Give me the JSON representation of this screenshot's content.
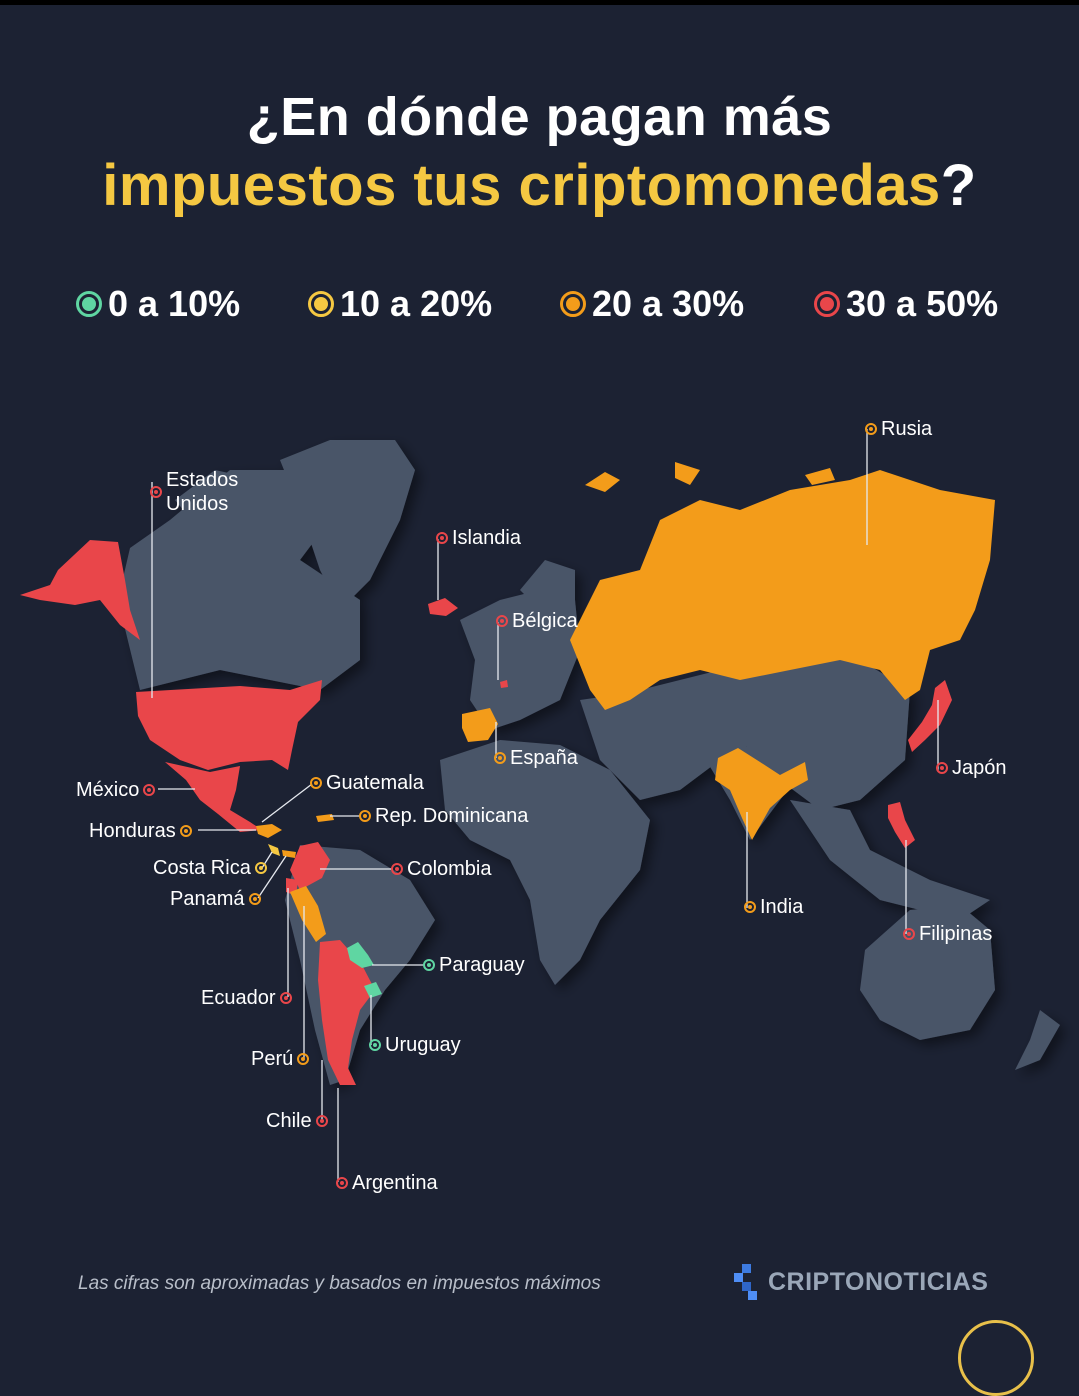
{
  "title": {
    "line1": "¿En dónde pagan más",
    "line2": "impuestos tus criptomonedas",
    "line2_qm": "?"
  },
  "legend": [
    {
      "label": "0 a 10%",
      "color": "#5fd6a2"
    },
    {
      "label": "10 a 20%",
      "color": "#f5c842"
    },
    {
      "label": "20 a 30%",
      "color": "#f39c1a"
    },
    {
      "label": "30 a 50%",
      "color": "#e9464a"
    }
  ],
  "colors": {
    "background": "#1c2233",
    "land": "#4a5568",
    "tier_0_10": "#5fd6a2",
    "tier_10_20": "#f5c842",
    "tier_20_30": "#f39c1a",
    "tier_30_50": "#e9464a"
  },
  "countries": [
    {
      "name": "Estados Unidos",
      "range": "30 a 50%"
    },
    {
      "name": "Islandia",
      "range": "30 a 50%"
    },
    {
      "name": "Bélgica",
      "range": "30 a 50%"
    },
    {
      "name": "Rusia",
      "range": "20 a 30%"
    },
    {
      "name": "España",
      "range": "20 a 30%"
    },
    {
      "name": "Japón",
      "range": "30 a 50%"
    },
    {
      "name": "México",
      "range": "30 a 50%"
    },
    {
      "name": "Guatemala",
      "range": "20 a 30%"
    },
    {
      "name": "Rep. Dominicana",
      "range": "20 a 30%"
    },
    {
      "name": "Honduras",
      "range": "20 a 30%"
    },
    {
      "name": "Costa Rica",
      "range": "10 a 20%"
    },
    {
      "name": "Panamá",
      "range": "20 a 30%"
    },
    {
      "name": "Colombia",
      "range": "30 a 50%"
    },
    {
      "name": "India",
      "range": "20 a 30%"
    },
    {
      "name": "Filipinas",
      "range": "30 a 50%"
    },
    {
      "name": "Paraguay",
      "range": "0 a 10%"
    },
    {
      "name": "Ecuador",
      "range": "30 a 50%"
    },
    {
      "name": "Uruguay",
      "range": "0 a 10%"
    },
    {
      "name": "Perú",
      "range": "20 a 30%"
    },
    {
      "name": "Chile",
      "range": "30 a 50%"
    },
    {
      "name": "Argentina",
      "range": "30 a 50%"
    }
  ],
  "footer": {
    "note": "Las cifras son aproximadas y basados en impuestos máximos",
    "brand": "CRIPTONOTICIAS"
  }
}
